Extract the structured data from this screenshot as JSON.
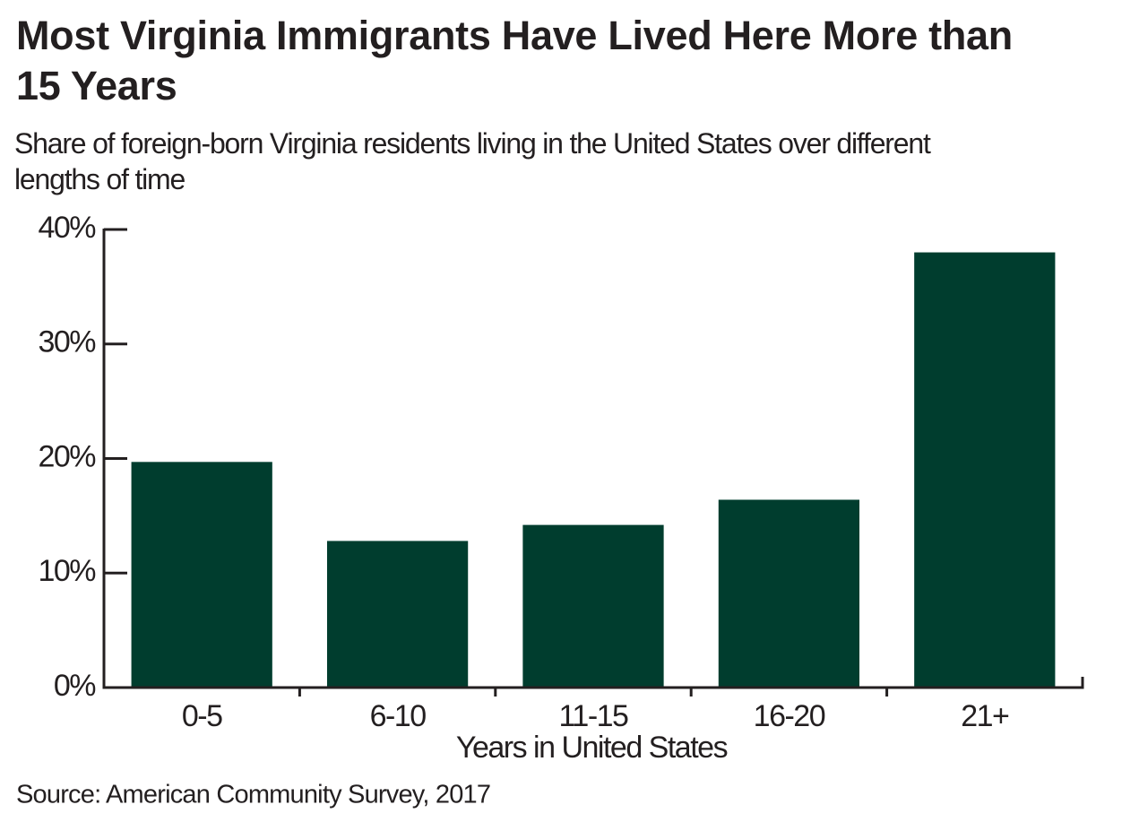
{
  "chart_data": {
    "type": "bar",
    "title": "Most Virginia Immigrants Have Lived Here More than 15 Years",
    "subtitle": "Share of foreign-born Virginia residents living in the United States over different lengths of time",
    "x_label": "Years in United States",
    "source": "Source: American Community Survey, 2017",
    "categories": [
      "0-5",
      "6-10",
      "11-15",
      "16-20",
      "21+"
    ],
    "values": [
      19.7,
      12.8,
      14.2,
      16.4,
      38.0
    ],
    "color": "#003d2e",
    "ylim": [
      0,
      40
    ],
    "yticks": [
      {
        "value": 0,
        "label": "0%"
      },
      {
        "value": 10,
        "label": "10%"
      },
      {
        "value": 20,
        "label": "20%"
      },
      {
        "value": 30,
        "label": "30%"
      },
      {
        "value": 40,
        "label": "40%"
      }
    ],
    "grid": false
  }
}
